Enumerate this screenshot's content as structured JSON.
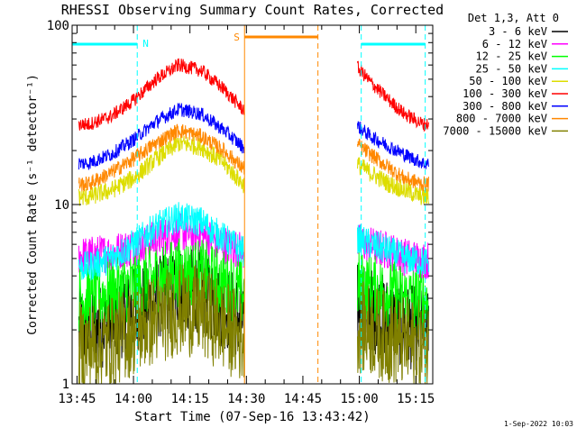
{
  "chart_data": {
    "type": "line",
    "title": "RHESSI Observing Summary Count Rates, Corrected",
    "xlabel": "Start Time (07-Sep-16 13:43:42)",
    "ylabel": "Corrected Count Rate (s⁻¹ detector⁻¹)",
    "x_unit": "minutes of day",
    "xlim": [
      823.7,
      919.5
    ],
    "ylim": [
      1,
      100
    ],
    "y_scale": "log",
    "x_ticks": [
      {
        "value": 825,
        "label": "13:45"
      },
      {
        "value": 840,
        "label": "14:00"
      },
      {
        "value": 855,
        "label": "14:15"
      },
      {
        "value": 870,
        "label": "14:30"
      },
      {
        "value": 885,
        "label": "14:45"
      },
      {
        "value": 900,
        "label": "15:00"
      },
      {
        "value": 915,
        "label": "15:15"
      }
    ],
    "y_ticks": [
      {
        "value": 1,
        "label": "1"
      },
      {
        "value": 10,
        "label": "10"
      },
      {
        "value": 100,
        "label": "100"
      }
    ],
    "legend_placement": "top-right",
    "legend_header": "Det 1,3, Att 0",
    "series": [
      {
        "name": "3 - 6 keV",
        "color": "#000000",
        "x": [
          828,
          834,
          840,
          846,
          852,
          858,
          864,
          869,
          899,
          903,
          908,
          912,
          917
        ],
        "values": [
          2.0,
          2.2,
          2.6,
          3.0,
          3.4,
          3.3,
          2.7,
          2.3,
          2.8,
          2.6,
          2.3,
          2.1,
          2.0
        ]
      },
      {
        "name": "6 - 12 keV",
        "color": "#ff00ff",
        "x": [
          828,
          834,
          840,
          846,
          852,
          858,
          864,
          869,
          899,
          903,
          908,
          912,
          917
        ],
        "values": [
          5.2,
          5.4,
          5.8,
          6.4,
          7.0,
          6.8,
          6.0,
          5.5,
          6.2,
          5.9,
          5.5,
          5.1,
          4.9
        ]
      },
      {
        "name": "12 - 25 keV",
        "color": "#00ff00",
        "x": [
          828,
          834,
          840,
          846,
          852,
          858,
          864,
          869,
          899,
          903,
          908,
          912,
          917
        ],
        "values": [
          3.0,
          3.2,
          3.5,
          3.9,
          4.2,
          4.1,
          3.6,
          3.2,
          3.6,
          3.4,
          3.2,
          3.0,
          2.9
        ]
      },
      {
        "name": "25 - 50 keV",
        "color": "#00ffff",
        "x": [
          828,
          834,
          840,
          846,
          852,
          858,
          864,
          869,
          899,
          903,
          908,
          912,
          917
        ],
        "values": [
          4.5,
          5.0,
          6.0,
          7.5,
          8.5,
          8.0,
          6.5,
          5.5,
          6.5,
          6.0,
          5.5,
          5.0,
          4.8
        ]
      },
      {
        "name": "50 - 100 keV",
        "color": "#dddd00",
        "x": [
          828,
          834,
          840,
          846,
          852,
          858,
          864,
          869,
          899,
          903,
          908,
          912,
          917
        ],
        "values": [
          11,
          12,
          14,
          18,
          22,
          21,
          17,
          13,
          17,
          15,
          13,
          12,
          11
        ]
      },
      {
        "name": "100 - 300 keV",
        "color": "#ff0000",
        "x": [
          828,
          834,
          840,
          846,
          852,
          858,
          864,
          869,
          899,
          903,
          908,
          912,
          917
        ],
        "values": [
          28,
          31,
          38,
          50,
          60,
          56,
          44,
          34,
          60,
          48,
          38,
          32,
          28
        ]
      },
      {
        "name": "300 - 800 keV",
        "color": "#0000ff",
        "x": [
          828,
          834,
          840,
          846,
          852,
          858,
          864,
          869,
          899,
          903,
          908,
          912,
          917
        ],
        "values": [
          17,
          19,
          23,
          29,
          34,
          32,
          26,
          21,
          28,
          24,
          21,
          19,
          17
        ]
      },
      {
        "name": "800 - 7000 keV",
        "color": "#ff8800",
        "x": [
          828,
          834,
          840,
          846,
          852,
          858,
          864,
          869,
          899,
          903,
          908,
          912,
          917
        ],
        "values": [
          13,
          15,
          18,
          22,
          26,
          24,
          20,
          16,
          22,
          19,
          16,
          14,
          13
        ]
      },
      {
        "name": "7000 - 15000 keV",
        "color": "#808000",
        "x": [
          828,
          834,
          840,
          846,
          852,
          858,
          864,
          869,
          899,
          903,
          908,
          912,
          917
        ],
        "values": [
          1.6,
          1.7,
          2.0,
          2.3,
          2.6,
          2.5,
          2.1,
          1.8,
          2.1,
          2.0,
          1.8,
          1.7,
          1.6
        ]
      }
    ],
    "annotations": [
      {
        "label": "N",
        "type": "night",
        "color": "#00ffff",
        "start": 823.7,
        "end": 841,
        "dashed_line_x": 841
      },
      {
        "label": "",
        "type": "night",
        "color": "#00ffff",
        "start": 900.5,
        "end": 917.5,
        "dashed_line_x": 917.5
      },
      {
        "label": "S",
        "type": "saa",
        "color": "#ff8800",
        "start": 869.5,
        "end": 889,
        "dashed_line_x": 889
      },
      {
        "label": "",
        "type": "marker",
        "color": "#00ffff",
        "dashed_line_x": 900.5
      }
    ]
  },
  "footer": {
    "timestamp": "1-Sep-2022 10:03"
  }
}
